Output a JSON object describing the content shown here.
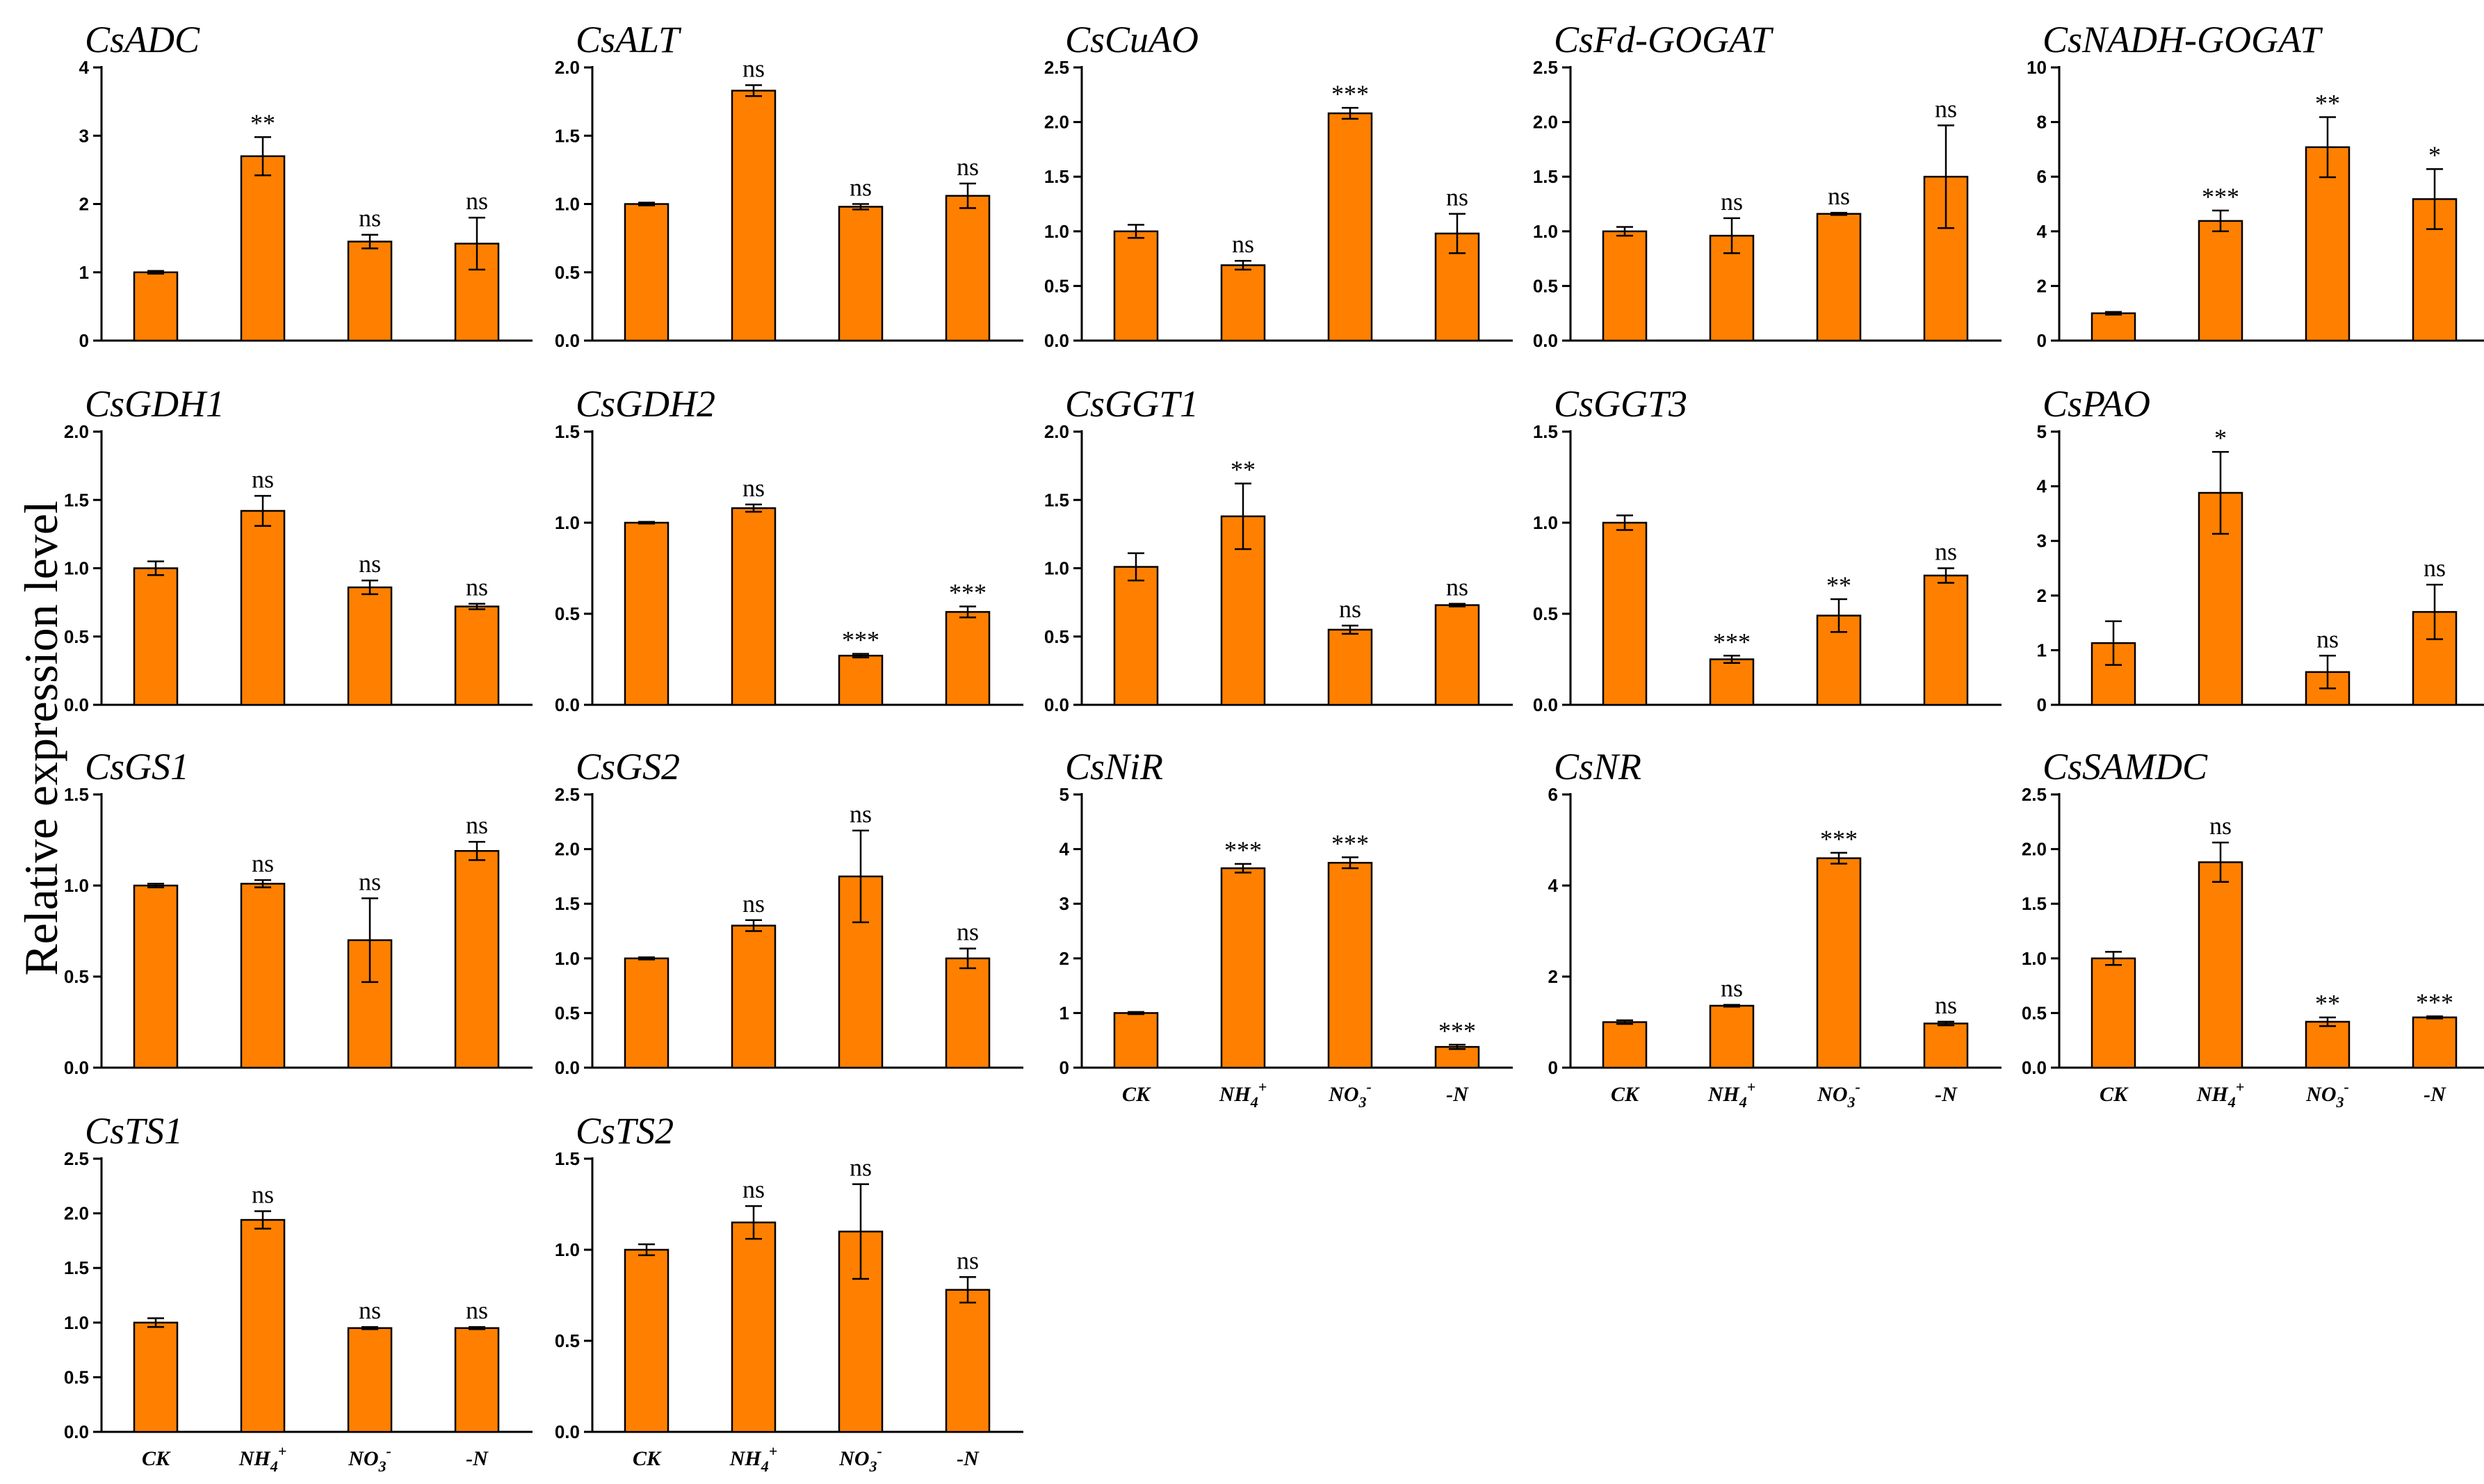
{
  "chart_data": {
    "type": "bar",
    "ylabel": "Relative expression level",
    "bar_color": "#FF8000",
    "categories": [
      "CK",
      "NH4+",
      "NO3-",
      "-N"
    ],
    "panels": [
      {
        "title": "CsADC",
        "ylim": [
          0,
          4
        ],
        "ticks": [
          "0",
          "1",
          "2",
          "3",
          "4"
        ],
        "values": [
          1.0,
          2.7,
          1.45,
          1.42
        ],
        "errors": [
          0.02,
          0.28,
          0.1,
          0.38
        ],
        "sig": [
          "",
          "**",
          "ns",
          "ns"
        ]
      },
      {
        "title": "CsALT",
        "ylim": [
          0,
          2.0
        ],
        "ticks": [
          "0.0",
          "0.5",
          "1.0",
          "1.5",
          "2.0"
        ],
        "values": [
          1.0,
          1.83,
          0.98,
          1.06
        ],
        "errors": [
          0.01,
          0.04,
          0.02,
          0.09
        ],
        "sig": [
          "",
          "ns",
          "ns",
          "ns"
        ]
      },
      {
        "title": "CsCuAO",
        "ylim": [
          0,
          2.5
        ],
        "ticks": [
          "0.0",
          "0.5",
          "1.0",
          "1.5",
          "2.0",
          "2.5"
        ],
        "values": [
          1.0,
          0.69,
          2.08,
          0.98
        ],
        "errors": [
          0.06,
          0.04,
          0.05,
          0.18
        ],
        "sig": [
          "",
          "ns",
          "***",
          "ns"
        ]
      },
      {
        "title": "CsFd-GOGAT",
        "ylim": [
          0,
          2.5
        ],
        "ticks": [
          "0.0",
          "0.5",
          "1.0",
          "1.5",
          "2.0",
          "2.5"
        ],
        "values": [
          1.0,
          0.96,
          1.16,
          1.5
        ],
        "errors": [
          0.04,
          0.16,
          0.01,
          0.47
        ],
        "sig": [
          "",
          "ns",
          "ns",
          "ns"
        ]
      },
      {
        "title": "CsNADH-GOGAT",
        "ylim": [
          0,
          10
        ],
        "ticks": [
          "0",
          "2",
          "4",
          "6",
          "8",
          "10"
        ],
        "values": [
          1.0,
          4.38,
          7.08,
          5.18
        ],
        "errors": [
          0.05,
          0.38,
          1.1,
          1.1
        ],
        "sig": [
          "",
          "***",
          "**",
          "*"
        ]
      },
      {
        "title": "CsGDH1",
        "ylim": [
          0,
          2.0
        ],
        "ticks": [
          "0.0",
          "0.5",
          "1.0",
          "1.5",
          "2.0"
        ],
        "values": [
          1.0,
          1.42,
          0.86,
          0.72
        ],
        "errors": [
          0.05,
          0.11,
          0.05,
          0.02
        ],
        "sig": [
          "",
          "ns",
          "ns",
          "ns"
        ]
      },
      {
        "title": "CsGDH2",
        "ylim": [
          0,
          1.5
        ],
        "ticks": [
          "0.0",
          "0.5",
          "1.0",
          "1.5"
        ],
        "values": [
          1.0,
          1.08,
          0.27,
          0.51
        ],
        "errors": [
          0.005,
          0.02,
          0.01,
          0.03
        ],
        "sig": [
          "",
          "ns",
          "***",
          "***"
        ]
      },
      {
        "title": "CsGGT1",
        "ylim": [
          0,
          2.0
        ],
        "ticks": [
          "0.0",
          "0.5",
          "1.0",
          "1.5",
          "2.0"
        ],
        "values": [
          1.01,
          1.38,
          0.55,
          0.73
        ],
        "errors": [
          0.1,
          0.24,
          0.03,
          0.01
        ],
        "sig": [
          "",
          "**",
          "ns",
          "ns"
        ]
      },
      {
        "title": "CsGGT3",
        "ylim": [
          0,
          1.5
        ],
        "ticks": [
          "0.0",
          "0.5",
          "1.0",
          "1.5"
        ],
        "values": [
          1.0,
          0.25,
          0.49,
          0.71
        ],
        "errors": [
          0.04,
          0.02,
          0.09,
          0.04
        ],
        "sig": [
          "",
          "***",
          "**",
          "ns"
        ]
      },
      {
        "title": "CsPAO",
        "ylim": [
          0,
          5
        ],
        "ticks": [
          "0",
          "1",
          "2",
          "3",
          "4",
          "5"
        ],
        "values": [
          1.13,
          3.88,
          0.6,
          1.7
        ],
        "errors": [
          0.4,
          0.75,
          0.3,
          0.5
        ],
        "sig": [
          "",
          "*",
          "ns",
          "ns"
        ]
      },
      {
        "title": "CsGS1",
        "ylim": [
          0,
          1.5
        ],
        "ticks": [
          "0.0",
          "0.5",
          "1.0",
          "1.5"
        ],
        "values": [
          1.0,
          1.01,
          0.7,
          1.19
        ],
        "errors": [
          0.01,
          0.02,
          0.23,
          0.05
        ],
        "sig": [
          "",
          "ns",
          "ns",
          "ns"
        ]
      },
      {
        "title": "CsGS2",
        "ylim": [
          0,
          2.5
        ],
        "ticks": [
          "0.0",
          "0.5",
          "1.0",
          "1.5",
          "2.0",
          "2.5"
        ],
        "values": [
          1.0,
          1.3,
          1.75,
          1.0
        ],
        "errors": [
          0.01,
          0.05,
          0.42,
          0.09
        ],
        "sig": [
          "",
          "ns",
          "ns",
          "ns"
        ]
      },
      {
        "title": "CsNiR",
        "ylim": [
          0,
          5
        ],
        "ticks": [
          "0",
          "1",
          "2",
          "3",
          "4",
          "5"
        ],
        "values": [
          1.0,
          3.65,
          3.75,
          0.38
        ],
        "errors": [
          0.02,
          0.08,
          0.1,
          0.04
        ],
        "sig": [
          "",
          "***",
          "***",
          "***"
        ]
      },
      {
        "title": "CsNR",
        "ylim": [
          0,
          6
        ],
        "ticks": [
          "0",
          "2",
          "4",
          "6"
        ],
        "values": [
          1.0,
          1.36,
          4.6,
          0.97
        ],
        "errors": [
          0.04,
          0.02,
          0.12,
          0.04
        ],
        "sig": [
          "",
          "ns",
          "***",
          "ns"
        ]
      },
      {
        "title": "CsSAMDC",
        "ylim": [
          0,
          2.5
        ],
        "ticks": [
          "0.0",
          "0.5",
          "1.0",
          "1.5",
          "2.0",
          "2.5"
        ],
        "values": [
          1.0,
          1.88,
          0.42,
          0.46
        ],
        "errors": [
          0.06,
          0.18,
          0.04,
          0.01
        ],
        "sig": [
          "",
          "ns",
          "**",
          "***"
        ]
      },
      {
        "title": "CsTS1",
        "ylim": [
          0,
          2.5
        ],
        "ticks": [
          "0.0",
          "0.5",
          "1.0",
          "1.5",
          "2.0",
          "2.5"
        ],
        "values": [
          1.0,
          1.94,
          0.95,
          0.95
        ],
        "errors": [
          0.04,
          0.08,
          0.01,
          0.01
        ],
        "sig": [
          "",
          "ns",
          "ns",
          "ns"
        ]
      },
      {
        "title": "CsTS2",
        "ylim": [
          0,
          1.5
        ],
        "ticks": [
          "0.0",
          "0.5",
          "1.0",
          "1.5"
        ],
        "values": [
          1.0,
          1.15,
          1.1,
          0.78
        ],
        "errors": [
          0.03,
          0.09,
          0.26,
          0.07
        ],
        "sig": [
          "",
          "ns",
          "ns",
          "ns"
        ]
      }
    ]
  }
}
